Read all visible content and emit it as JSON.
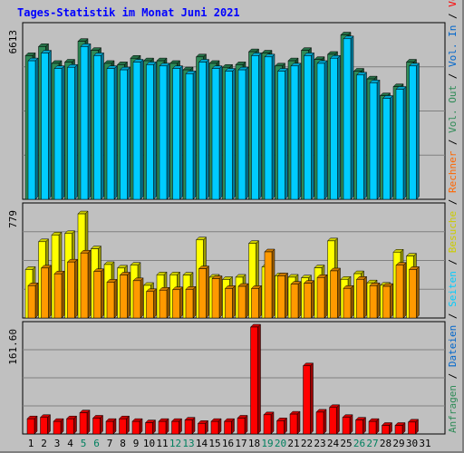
{
  "chart_data": [
    {
      "type": "bar",
      "title": "Tages-Statistik im Monat Juni 2021",
      "categories": [
        "1",
        "2",
        "3",
        "4",
        "5",
        "6",
        "7",
        "8",
        "9",
        "10",
        "11",
        "12",
        "13",
        "14",
        "15",
        "16",
        "17",
        "18",
        "19",
        "20",
        "21",
        "22",
        "23",
        "24",
        "25",
        "26",
        "27",
        "28",
        "29",
        "30",
        "31"
      ],
      "weekend_days": [
        "5",
        "6",
        "12",
        "13",
        "19",
        "20",
        "26",
        "27"
      ],
      "ymax_label": "6613",
      "ylim": [
        0,
        6613
      ],
      "series": [
        {
          "name": "Anfragen",
          "color": "#2e8b57",
          "values": [
            5550,
            5900,
            5250,
            5300,
            6100,
            5750,
            5250,
            5200,
            5450,
            5350,
            5350,
            5250,
            5000,
            5500,
            5250,
            5100,
            5200,
            5700,
            5650,
            5150,
            5350,
            5750,
            5400,
            5600,
            6350,
            4950,
            4650,
            4000,
            4350,
            5300,
            null
          ]
        },
        {
          "name": "Dateien",
          "color": "#00ccff",
          "values": [
            5350,
            5650,
            5050,
            5100,
            5900,
            5550,
            5050,
            5000,
            5300,
            5200,
            5150,
            5050,
            4850,
            5300,
            5050,
            4950,
            5000,
            5550,
            5500,
            4950,
            5150,
            5550,
            5250,
            5450,
            6200,
            4800,
            4500,
            3900,
            4250,
            5150,
            null
          ]
        }
      ]
    },
    {
      "type": "bar",
      "ymax_label": "779",
      "ylim": [
        0,
        779
      ],
      "series": [
        {
          "name": "Besuche",
          "color": "#ffff00",
          "values": [
            345,
            542,
            590,
            600,
            740,
            492,
            380,
            355,
            375,
            232,
            307,
            307,
            305,
            555,
            290,
            274,
            290,
            530,
            362,
            300,
            290,
            285,
            357,
            548,
            275,
            315,
            250,
            233,
            468,
            440,
            null
          ]
        },
        {
          "name": "Rechner",
          "color": "#ff9900",
          "values": [
            230,
            355,
            314,
            398,
            462,
            330,
            255,
            306,
            265,
            188,
            198,
            201,
            204,
            350,
            280,
            210,
            225,
            210,
            470,
            300,
            240,
            247,
            288,
            335,
            211,
            275,
            230,
            225,
            375,
            345,
            null
          ]
        }
      ]
    },
    {
      "type": "bar",
      "ymax_label": "161.60",
      "ylim": [
        0,
        161.6
      ],
      "series": [
        {
          "name": "Volumen",
          "color": "#ff0000",
          "values": [
            23,
            25,
            19,
            23,
            32,
            24,
            19,
            23,
            19,
            17,
            19,
            19,
            21,
            16,
            19,
            19,
            24,
            161.6,
            29,
            20,
            30,
            103,
            33,
            40,
            25,
            21,
            19,
            13,
            13,
            18,
            null
          ]
        }
      ]
    }
  ],
  "right_labels": [
    {
      "text": "Anfragen",
      "color": "#2e8b57"
    },
    {
      "text": " / ",
      "color": "#000000"
    },
    {
      "text": "Dateien",
      "color": "#0066cc"
    },
    {
      "text": " / ",
      "color": "#000000"
    },
    {
      "text": "Seiten",
      "color": "#00ccff"
    },
    {
      "text": " / ",
      "color": "#000000"
    },
    {
      "text": "Besuche",
      "color": "#cccc00"
    },
    {
      "text": " / ",
      "color": "#000000"
    },
    {
      "text": "Rechner",
      "color": "#ff6600"
    },
    {
      "text": " / ",
      "color": "#000000"
    },
    {
      "text": "Vol. Out",
      "color": "#2e8b57"
    },
    {
      "text": " / ",
      "color": "#000000"
    },
    {
      "text": "Vol. In",
      "color": "#0066cc"
    },
    {
      "text": " / ",
      "color": "#000000"
    },
    {
      "text": "Volumen",
      "color": "#ff0000"
    }
  ],
  "colors": {
    "frame_bg": "#c0c0c0",
    "panel_bg": "#c0c0c0",
    "grid": "#808080",
    "weekday_label": "#000000",
    "weekend_label": "#00805f"
  }
}
